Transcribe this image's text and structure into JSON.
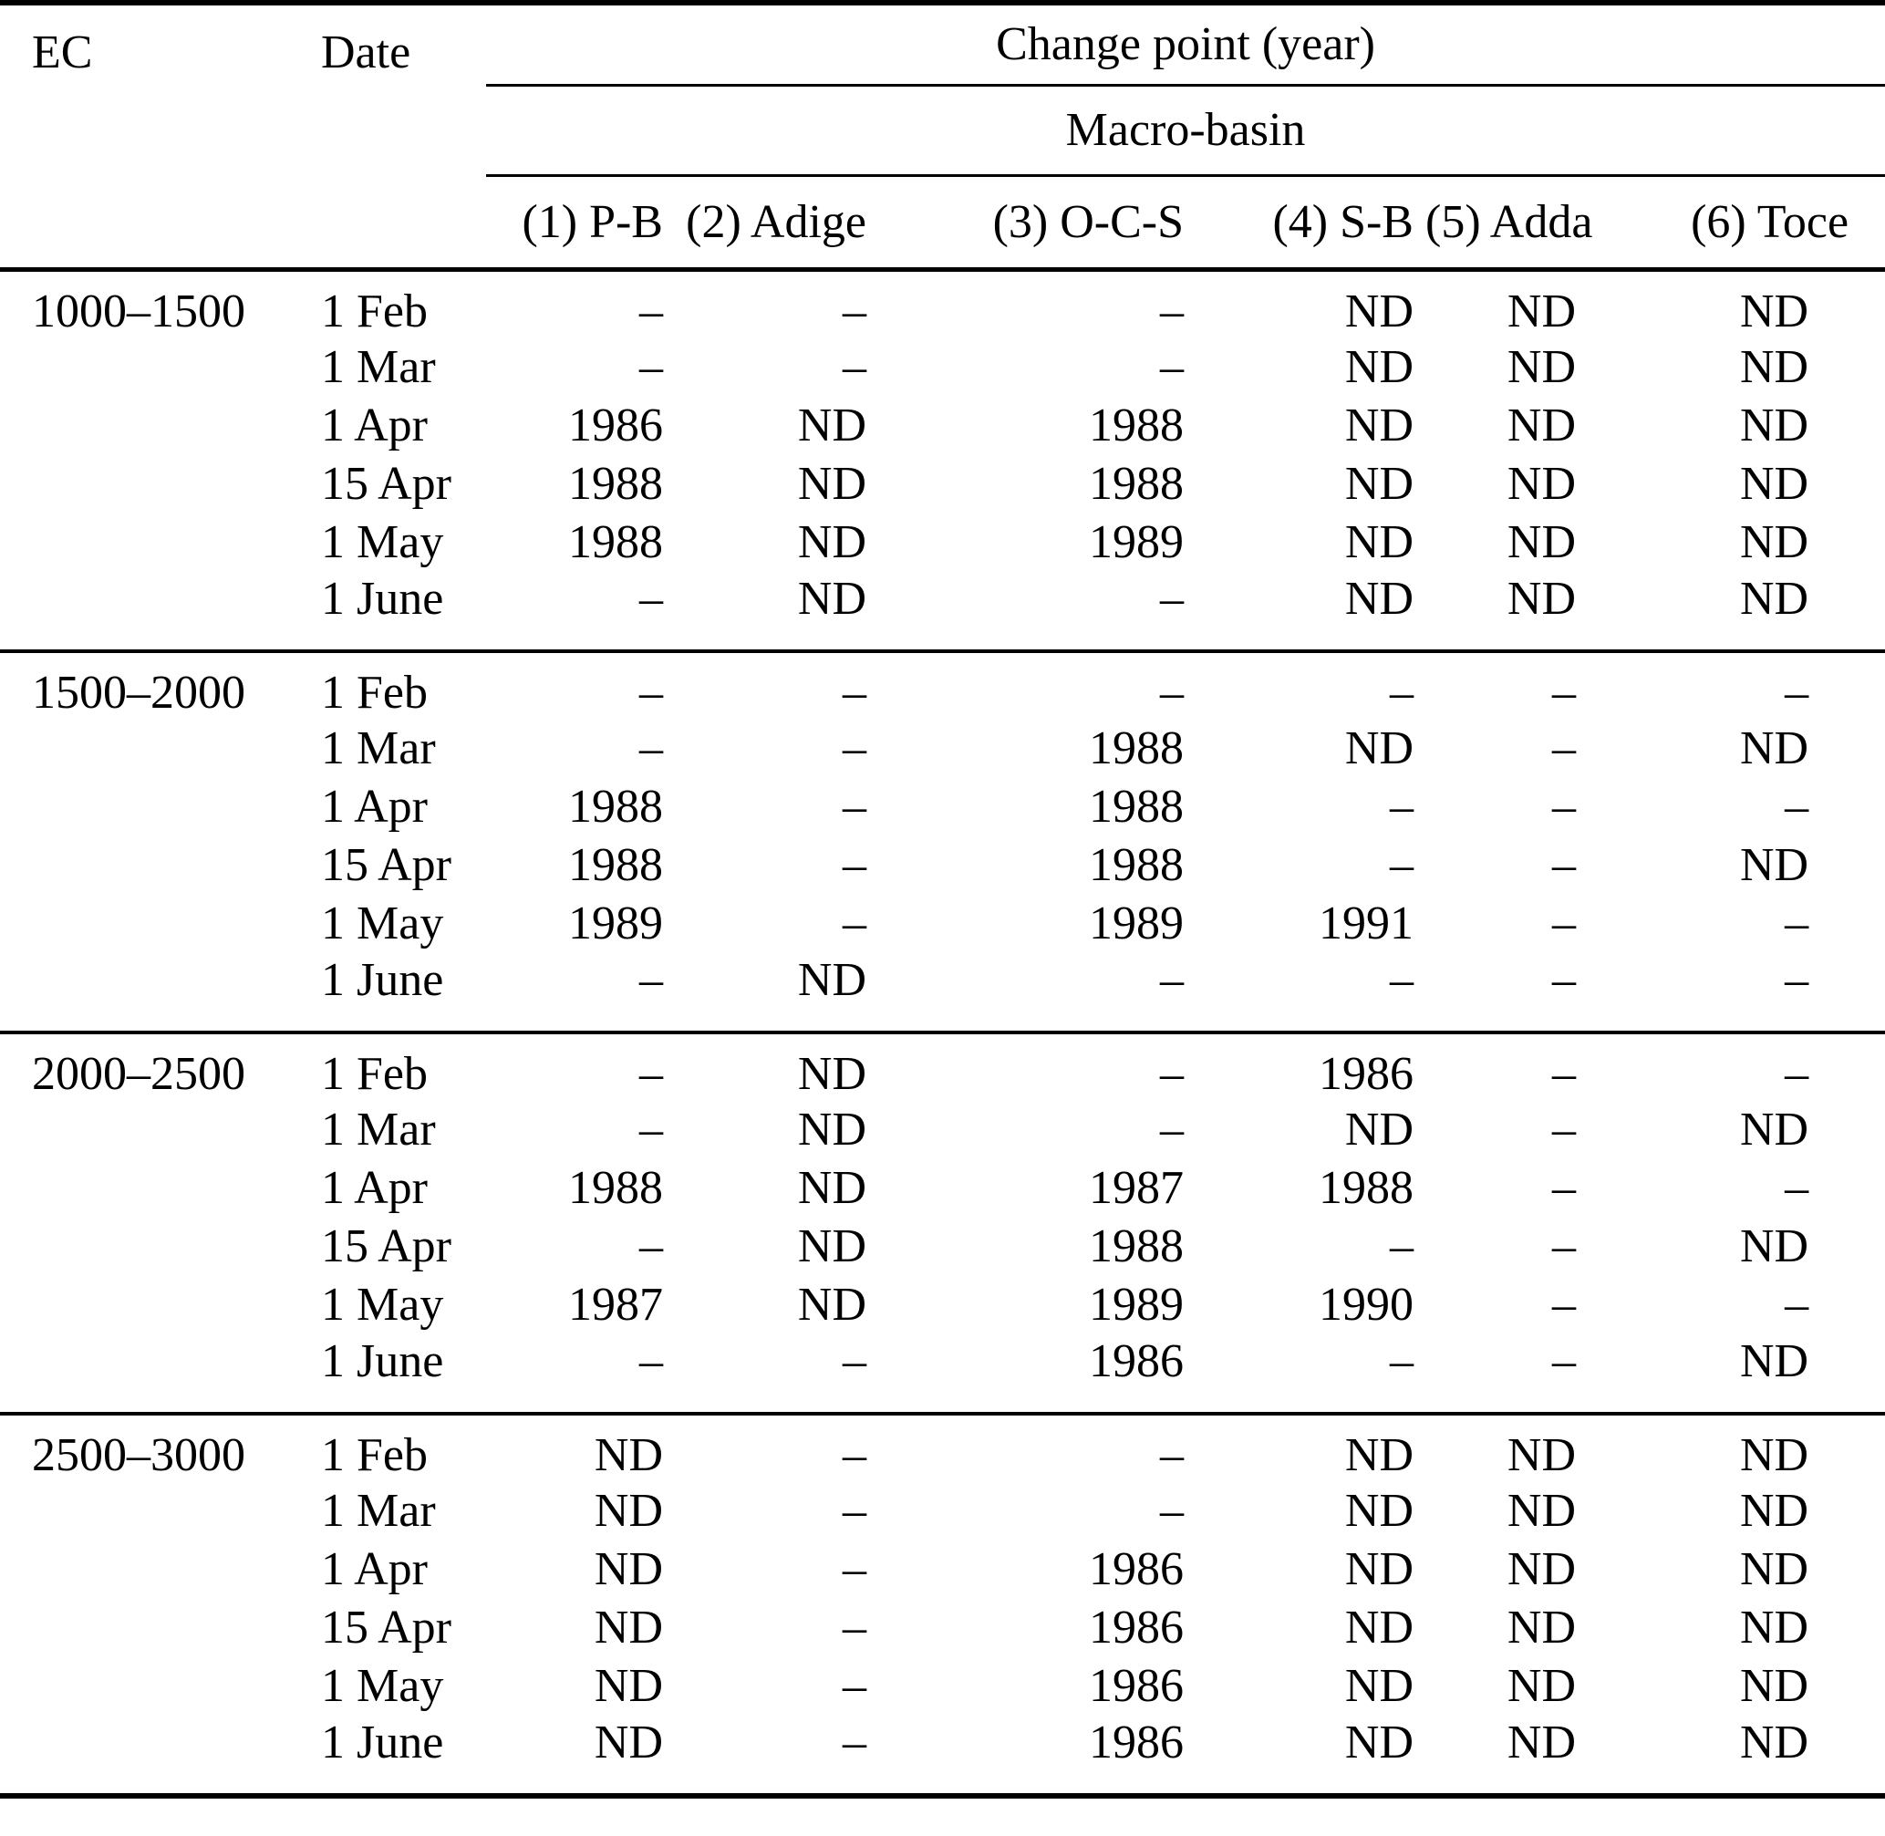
{
  "table": {
    "ec_header": "EC",
    "date_header": "Date",
    "span_header": "Change point (year)",
    "subspan_header": "Macro-basin",
    "basins": [
      "(1) P-B",
      "(2) Adige",
      "(3) O-C-S",
      "(4) S-B",
      "(5) Adda",
      "(6) Toce"
    ],
    "groups": [
      {
        "ec": "1000–1500",
        "rows": [
          {
            "date": "1 Feb",
            "values": [
              "–",
              "–",
              "–",
              "ND",
              "ND",
              "ND"
            ]
          },
          {
            "date": "1 Mar",
            "values": [
              "–",
              "–",
              "–",
              "ND",
              "ND",
              "ND"
            ]
          },
          {
            "date": "1 Apr",
            "values": [
              "1986",
              "ND",
              "1988",
              "ND",
              "ND",
              "ND"
            ]
          },
          {
            "date": "15 Apr",
            "values": [
              "1988",
              "ND",
              "1988",
              "ND",
              "ND",
              "ND"
            ]
          },
          {
            "date": "1 May",
            "values": [
              "1988",
              "ND",
              "1989",
              "ND",
              "ND",
              "ND"
            ]
          },
          {
            "date": "1 June",
            "values": [
              "–",
              "ND",
              "–",
              "ND",
              "ND",
              "ND"
            ]
          }
        ]
      },
      {
        "ec": "1500–2000",
        "rows": [
          {
            "date": "1 Feb",
            "values": [
              "–",
              "–",
              "–",
              "–",
              "–",
              "–"
            ]
          },
          {
            "date": "1 Mar",
            "values": [
              "–",
              "–",
              "1988",
              "ND",
              "–",
              "ND"
            ]
          },
          {
            "date": "1 Apr",
            "values": [
              "1988",
              "–",
              "1988",
              "–",
              "–",
              "–"
            ]
          },
          {
            "date": "15 Apr",
            "values": [
              "1988",
              "–",
              "1988",
              "–",
              "–",
              "ND"
            ]
          },
          {
            "date": "1 May",
            "values": [
              "1989",
              "–",
              "1989",
              "1991",
              "–",
              "–"
            ]
          },
          {
            "date": "1 June",
            "values": [
              "–",
              "ND",
              "–",
              "–",
              "–",
              "–"
            ]
          }
        ]
      },
      {
        "ec": "2000–2500",
        "rows": [
          {
            "date": "1 Feb",
            "values": [
              "–",
              "ND",
              "–",
              "1986",
              "–",
              "–"
            ]
          },
          {
            "date": "1 Mar",
            "values": [
              "–",
              "ND",
              "–",
              "ND",
              "–",
              "ND"
            ]
          },
          {
            "date": "1 Apr",
            "values": [
              "1988",
              "ND",
              "1987",
              "1988",
              "–",
              "–"
            ]
          },
          {
            "date": "15 Apr",
            "values": [
              "–",
              "ND",
              "1988",
              "–",
              "–",
              "ND"
            ]
          },
          {
            "date": "1 May",
            "values": [
              "1987",
              "ND",
              "1989",
              "1990",
              "–",
              "–"
            ]
          },
          {
            "date": "1 June",
            "values": [
              "–",
              "–",
              "1986",
              "–",
              "–",
              "ND"
            ]
          }
        ]
      },
      {
        "ec": "2500–3000",
        "rows": [
          {
            "date": "1 Feb",
            "values": [
              "ND",
              "–",
              "–",
              "ND",
              "ND",
              "ND"
            ]
          },
          {
            "date": "1 Mar",
            "values": [
              "ND",
              "–",
              "–",
              "ND",
              "ND",
              "ND"
            ]
          },
          {
            "date": "1 Apr",
            "values": [
              "ND",
              "–",
              "1986",
              "ND",
              "ND",
              "ND"
            ]
          },
          {
            "date": "15 Apr",
            "values": [
              "ND",
              "–",
              "1986",
              "ND",
              "ND",
              "ND"
            ]
          },
          {
            "date": "1 May",
            "values": [
              "ND",
              "–",
              "1986",
              "ND",
              "ND",
              "ND"
            ]
          },
          {
            "date": "1 June",
            "values": [
              "ND",
              "–",
              "1986",
              "ND",
              "ND",
              "ND"
            ]
          }
        ]
      }
    ]
  }
}
